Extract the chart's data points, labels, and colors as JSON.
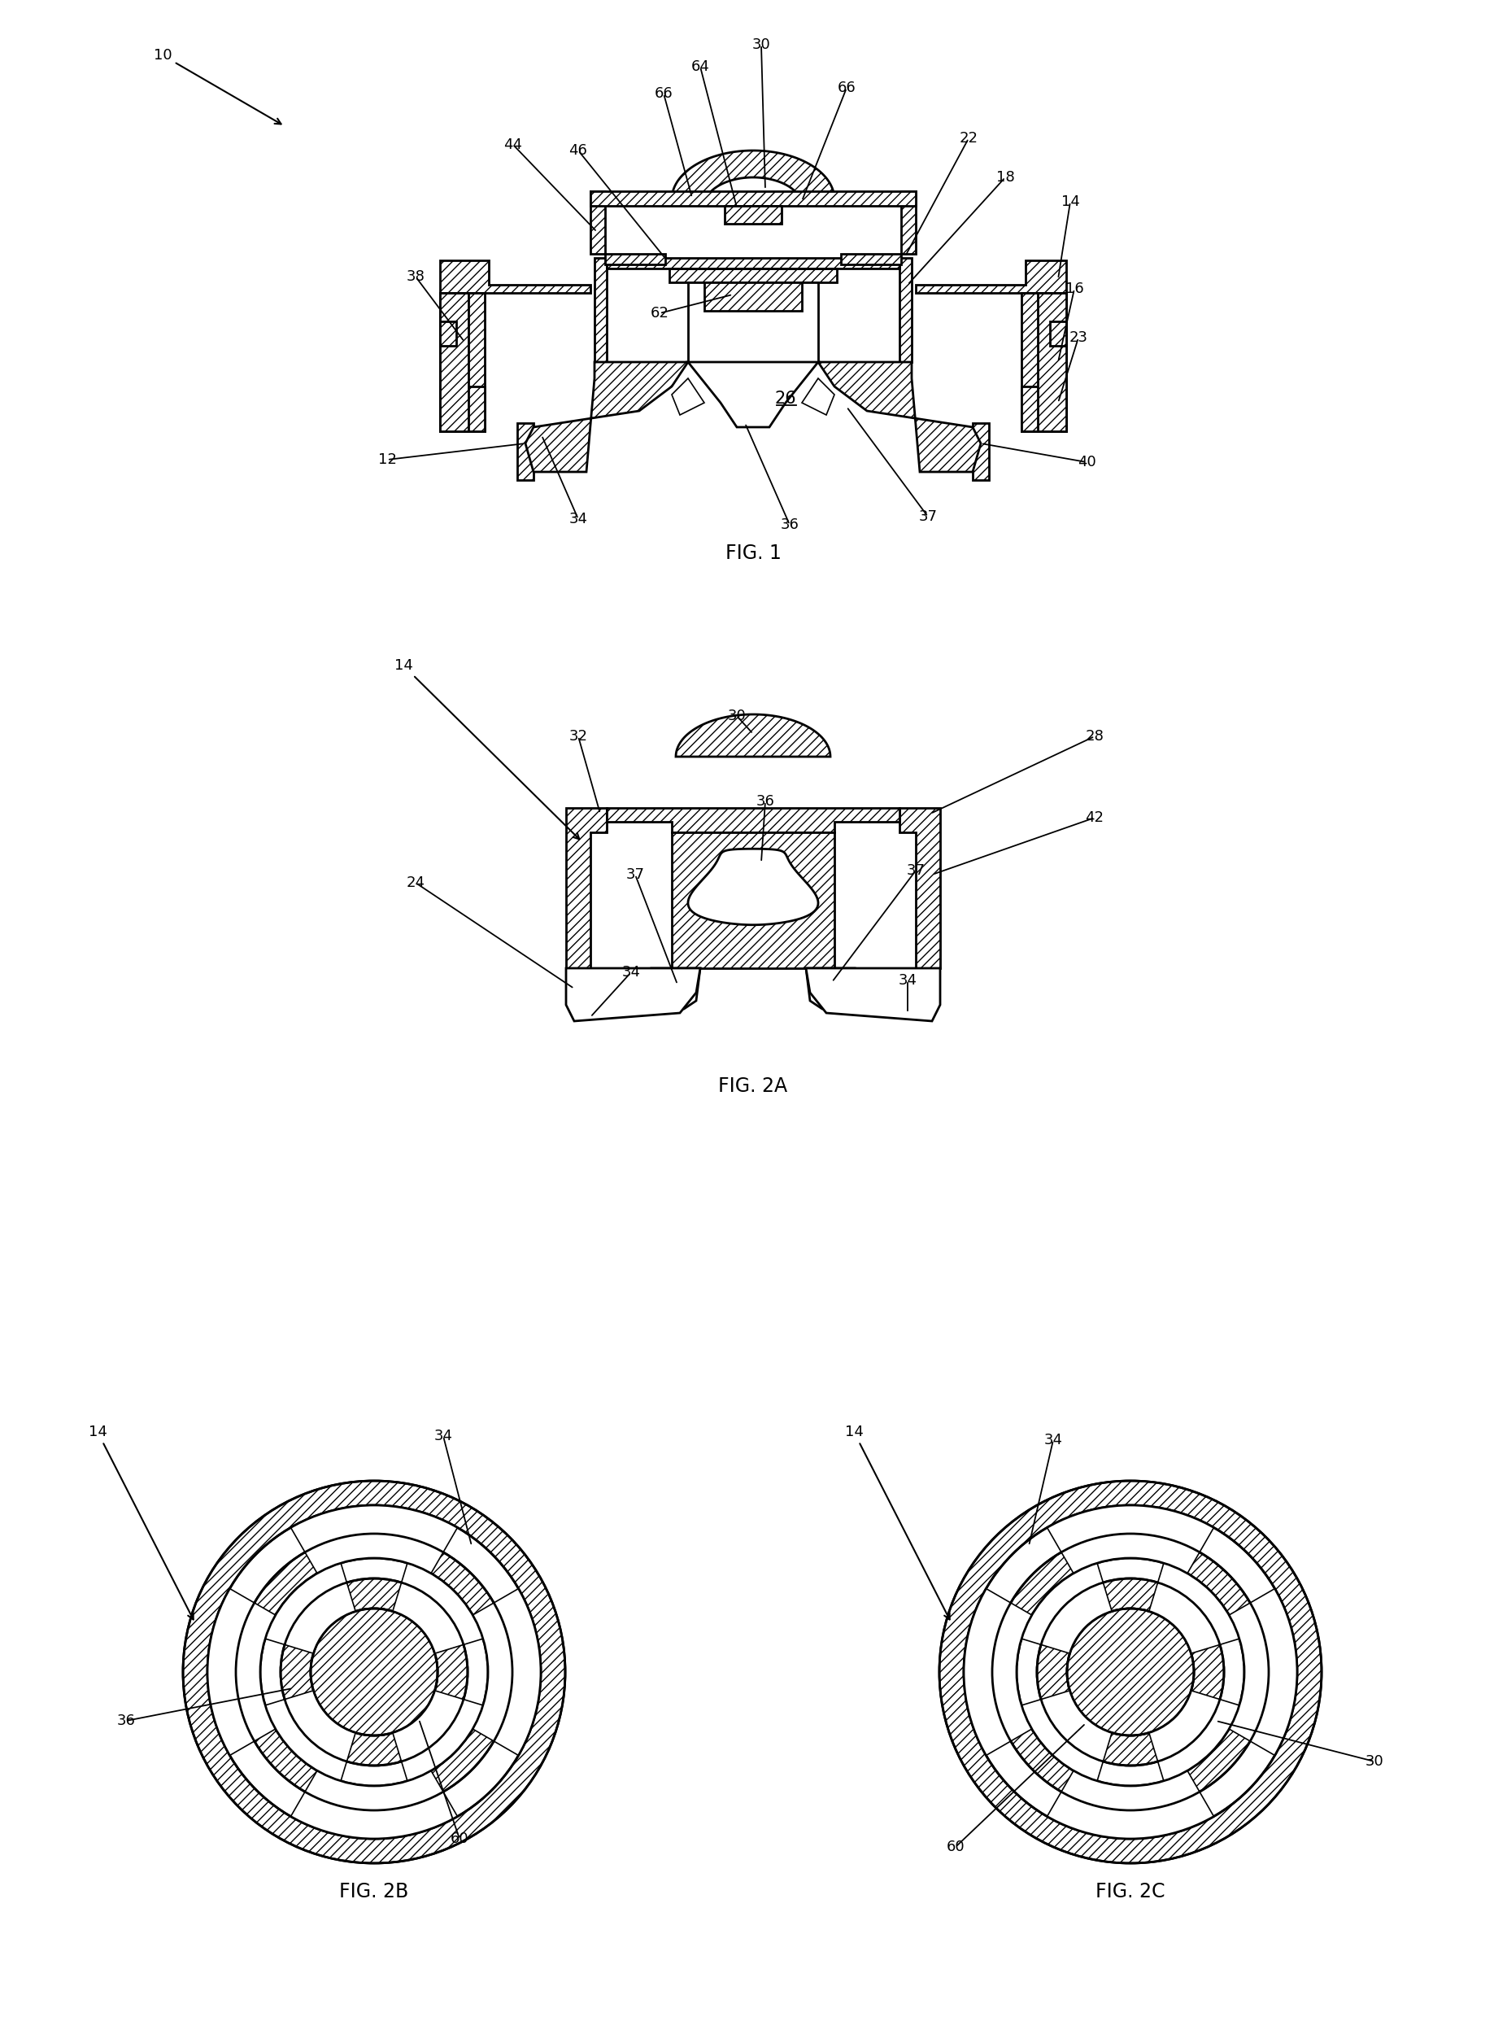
{
  "background_color": "#ffffff",
  "fig_width": 18.53,
  "fig_height": 24.95,
  "fig1_label": "FIG. 1",
  "fig2a_label": "FIG. 2A",
  "fig2b_label": "FIG. 2B",
  "fig2c_label": "FIG. 2C",
  "line_color": "#000000",
  "annotation_fontsize": 13,
  "caption_fontsize": 17
}
